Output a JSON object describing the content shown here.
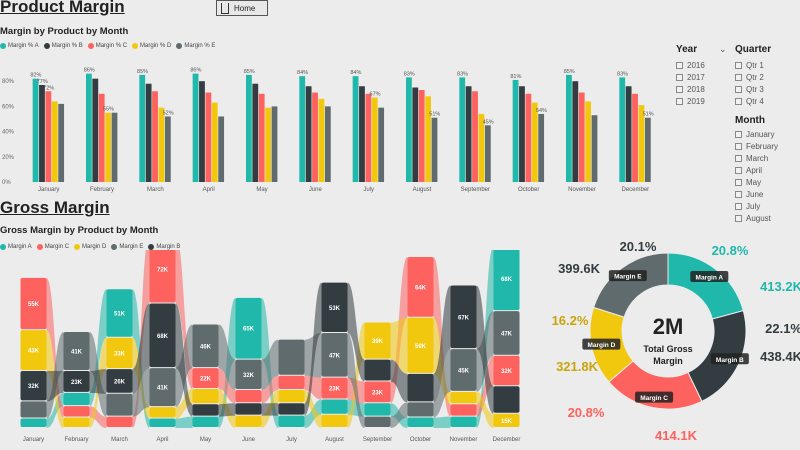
{
  "header": {
    "home_label": "Home"
  },
  "product_section": {
    "title": "Product Margin",
    "chart_title": "Margin by Product by Month"
  },
  "gross_section": {
    "title": "Gross Margin",
    "chart_title": "Gross Margin by Product by Month"
  },
  "colors": {
    "A": "#1fb8aa",
    "B": "#333c40",
    "C": "#fd625e",
    "D": "#f2c80f",
    "E": "#5f6b6d"
  },
  "slicers": {
    "year": {
      "label": "Year",
      "items": [
        "2016",
        "2017",
        "2018",
        "2019"
      ]
    },
    "quarter": {
      "label": "Quarter",
      "items": [
        "Qtr 1",
        "Qtr 2",
        "Qtr 3",
        "Qtr 4"
      ]
    },
    "month": {
      "label": "Month",
      "items": [
        "January",
        "February",
        "March",
        "April",
        "May",
        "June",
        "July",
        "August"
      ]
    }
  },
  "chart_data": [
    {
      "type": "bar",
      "title": "Margin by Product by Month",
      "categories": [
        "January",
        "February",
        "March",
        "April",
        "May",
        "June",
        "July",
        "August",
        "September",
        "October",
        "November",
        "December"
      ],
      "ylim": [
        0,
        100
      ],
      "yticks": [
        "0%",
        "20%",
        "40%",
        "60%",
        "80%"
      ],
      "legend": "top-left",
      "series": [
        {
          "name": "Margin % A",
          "key": "A",
          "values": [
            82,
            86,
            85,
            86,
            85,
            84,
            84,
            83,
            83,
            81,
            85,
            83
          ],
          "labels": [
            "82%",
            "86%",
            "85%",
            "86%",
            "85%",
            "84%",
            "84%",
            "83%",
            "83%",
            "81%",
            "85%",
            "83%"
          ]
        },
        {
          "name": "Margin % B",
          "key": "B",
          "values": [
            77,
            82,
            78,
            80,
            78,
            76,
            76,
            75,
            76,
            76,
            80,
            76
          ],
          "labels": [
            "77%",
            "",
            "",
            "",
            "",
            "",
            "",
            "",
            "",
            "",
            "",
            ""
          ]
        },
        {
          "name": "Margin % C",
          "key": "C",
          "values": [
            72,
            70,
            72,
            71,
            70,
            71,
            70,
            73,
            72,
            70,
            71,
            70
          ],
          "labels": [
            "72%",
            "",
            "",
            "",
            "",
            "",
            "",
            "",
            "",
            "",
            "",
            ""
          ]
        },
        {
          "name": "Margin % D",
          "key": "D",
          "values": [
            64,
            55,
            59,
            63,
            59,
            66,
            67,
            68,
            54,
            63,
            64,
            61
          ],
          "labels": [
            "",
            "55%",
            "",
            "",
            "",
            "",
            "67%",
            "",
            "",
            "",
            "",
            ""
          ]
        },
        {
          "name": "Margin % E",
          "key": "E",
          "values": [
            62,
            55,
            52,
            52,
            60,
            60,
            59,
            51,
            45,
            54,
            53,
            51
          ],
          "labels": [
            "",
            "",
            "52%",
            "",
            "",
            "",
            "",
            "51%",
            "45%",
            "54%",
            "",
            "51%"
          ]
        }
      ]
    },
    {
      "type": "area",
      "title": "Gross Margin by Product by Month",
      "categories": [
        "January",
        "February",
        "March",
        "April",
        "May",
        "June",
        "July",
        "August",
        "September",
        "October",
        "November",
        "December"
      ],
      "legend": "top-left",
      "series": [
        {
          "name": "Margin A",
          "key": "A",
          "values": [
            10,
            14,
            51,
            10,
            12,
            65,
            13,
            16,
            14,
            11,
            12,
            68
          ],
          "labels": [
            "",
            "",
            "51K",
            "",
            "",
            "65K",
            "",
            "",
            "",
            "",
            "",
            "68K"
          ]
        },
        {
          "name": "Margin C",
          "key": "C",
          "values": [
            55,
            12,
            12,
            72,
            22,
            14,
            15,
            23,
            23,
            64,
            13,
            32
          ],
          "labels": [
            "55K",
            "",
            "",
            "72K",
            "22K",
            "",
            "",
            "23K",
            "23K",
            "64K",
            "",
            "32K"
          ]
        },
        {
          "name": "Margin D",
          "key": "D",
          "values": [
            43,
            11,
            33,
            12,
            16,
            13,
            14,
            14,
            39,
            59,
            13,
            15
          ],
          "labels": [
            "43K",
            "",
            "33K",
            "",
            "",
            "",
            "",
            "",
            "39K",
            "59K",
            "",
            "15K"
          ]
        },
        {
          "name": "Margin E",
          "key": "E",
          "values": [
            18,
            41,
            24,
            41,
            46,
            32,
            38,
            47,
            12,
            16,
            45,
            47
          ],
          "labels": [
            "",
            "41K",
            "",
            "41K",
            "46K",
            "32K",
            "",
            "47K",
            "",
            "",
            "45K",
            "47K"
          ]
        },
        {
          "name": "Margin B",
          "key": "B",
          "values": [
            32,
            23,
            26,
            68,
            13,
            13,
            13,
            53,
            23,
            30,
            67,
            29
          ],
          "labels": [
            "32K",
            "23K",
            "26K",
            "68K",
            "",
            "",
            "",
            "53K",
            "",
            "",
            "67K",
            ""
          ]
        }
      ]
    },
    {
      "type": "pie",
      "title": "Total Gross Margin",
      "center_value": "2M",
      "center_label_1": "Total Gross",
      "center_label_2": "Margin",
      "slices": [
        {
          "name": "Margin A",
          "key": "A",
          "value": 413.2,
          "value_label": "413.2K",
          "percent": "20.8%"
        },
        {
          "name": "Margin B",
          "key": "B",
          "value": 438.4,
          "value_label": "438.4K",
          "percent": "22.1%"
        },
        {
          "name": "Margin C",
          "key": "C",
          "value": 414.1,
          "value_label": "414.1K",
          "percent": "20.8%"
        },
        {
          "name": "Margin D",
          "key": "D",
          "value": 321.8,
          "value_label": "321.8K",
          "percent": "16.2%"
        },
        {
          "name": "Margin E",
          "key": "E",
          "value": 399.6,
          "value_label": "399.6K",
          "percent": "20.1%"
        }
      ]
    }
  ]
}
